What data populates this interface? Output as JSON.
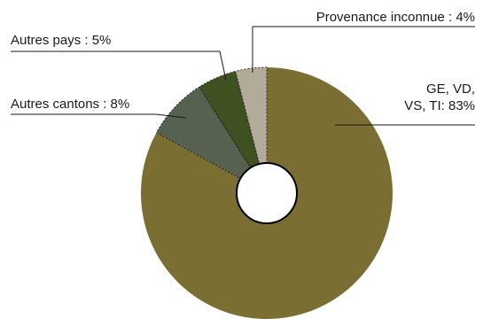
{
  "chart_data": {
    "type": "pie",
    "donut": true,
    "title": "",
    "slices": [
      {
        "label": "GE, VD,\nVS, TI: 83%",
        "label_lines": [
          "GE, VD,",
          "VS, TI: 83%"
        ],
        "value": 83,
        "color": "#7a6e32"
      },
      {
        "label": "Autres cantons: 8%",
        "label_lines": [
          "Autres cantons : 8%"
        ],
        "value": 8,
        "color": "#56614f"
      },
      {
        "label": "Autres pays: 5%",
        "label_lines": [
          "Autres pays : 5%"
        ],
        "value": 5,
        "color": "#3f5121"
      },
      {
        "label": "Provenance inconnue: 4%",
        "label_lines": [
          "Provenance inconnue : 4%"
        ],
        "value": 4,
        "color": "#b1ab98"
      }
    ],
    "start_angle_deg": 0,
    "direction": "clockwise",
    "center_hole_color": "#ffffff"
  }
}
